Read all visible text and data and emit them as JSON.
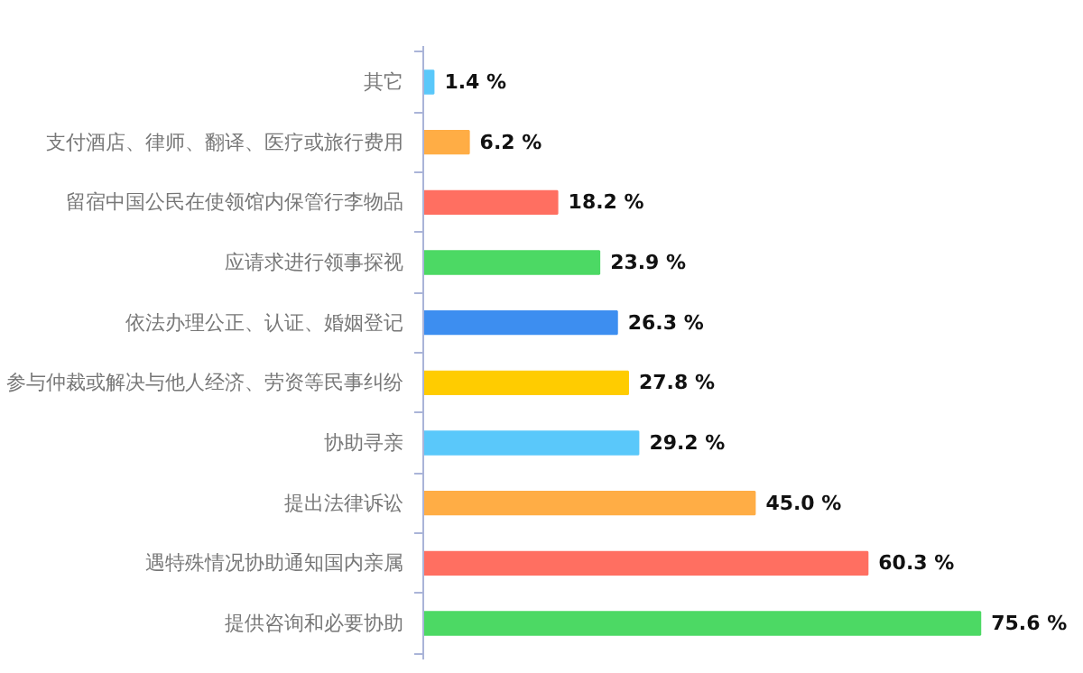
{
  "chart_data": {
    "type": "bar",
    "orientation": "horizontal",
    "categories": [
      "其它",
      "支付酒店、律师、翻译、医疗或旅行费用",
      "留宿中国公民在使领馆内保管行李物品",
      "应请求进行领事探视",
      "依法办理公正、认证、婚姻登记",
      "参与仲裁或解决与他人经济、劳资等民事纠纷",
      "协助寻亲",
      "提出法律诉讼",
      "遇特殊情况协助通知国内亲属",
      "提供咨询和必要协助"
    ],
    "values": [
      1.4,
      6.2,
      18.2,
      23.9,
      26.3,
      27.8,
      29.2,
      45.0,
      60.3,
      75.6
    ],
    "value_labels": [
      "1.4 %",
      "6.2 %",
      "18.2 %",
      "23.9 %",
      "26.3 %",
      "27.8 %",
      "29.2 %",
      "45.0 %",
      "60.3 %",
      "75.6 %"
    ],
    "colors": [
      "#5ac8fa",
      "#ffad45",
      "#ff6f61",
      "#4cd964",
      "#3d8ef0",
      "#ffcc00",
      "#5ac8fa",
      "#ffad45",
      "#ff6f61",
      "#4cd964"
    ],
    "tick_labels": "y",
    "grid": false
  }
}
